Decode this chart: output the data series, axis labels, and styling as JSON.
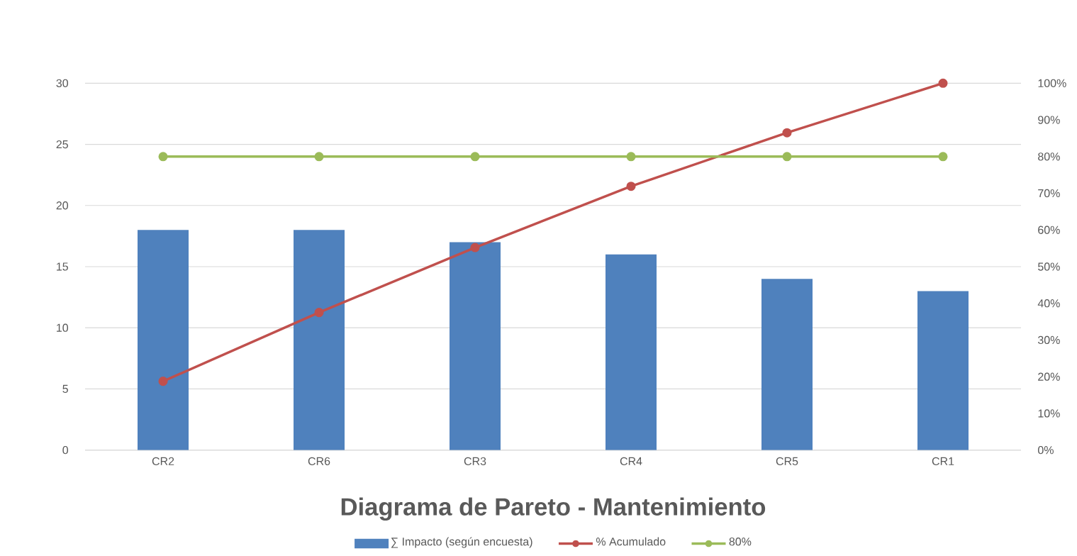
{
  "chart_data": {
    "type": "bar",
    "title": "Diagrama de Pareto - Mantenimiento",
    "categories": [
      "CR2",
      "CR6",
      "CR3",
      "CR4",
      "CR5",
      "CR1"
    ],
    "series": [
      {
        "name": "∑ Impacto (según encuesta)",
        "color": "#4f81bd",
        "values": [
          18,
          18,
          17,
          16,
          14,
          13
        ]
      },
      {
        "name": "% Acumulado",
        "type": "line",
        "axis": "y2",
        "color": "#c0504d",
        "marker": "circle",
        "line_style": "solid",
        "values": [
          18.75,
          37.5,
          55.2,
          71.9,
          86.5,
          100
        ]
      },
      {
        "name": "80%",
        "type": "line",
        "axis": "y2",
        "color": "#9bbb59",
        "marker": "circle",
        "line_style": "solid",
        "values": [
          80,
          80,
          80,
          80,
          80,
          80
        ]
      }
    ],
    "ylim": [
      0,
      30
    ],
    "yticks": [
      0,
      5,
      10,
      15,
      20,
      25,
      30
    ],
    "y2lim": [
      0,
      100
    ],
    "y2ticks": [
      {
        "value": 0,
        "label": "0%"
      },
      {
        "value": 10,
        "label": "10%"
      },
      {
        "value": 20,
        "label": "20%"
      },
      {
        "value": 30,
        "label": "30%"
      },
      {
        "value": 40,
        "label": "40%"
      },
      {
        "value": 50,
        "label": "50%"
      },
      {
        "value": 60,
        "label": "60%"
      },
      {
        "value": 70,
        "label": "70%"
      },
      {
        "value": 80,
        "label": "80%"
      },
      {
        "value": 90,
        "label": "90%"
      },
      {
        "value": 100,
        "label": "100%"
      }
    ],
    "grid": "y",
    "legend": "bottom"
  }
}
